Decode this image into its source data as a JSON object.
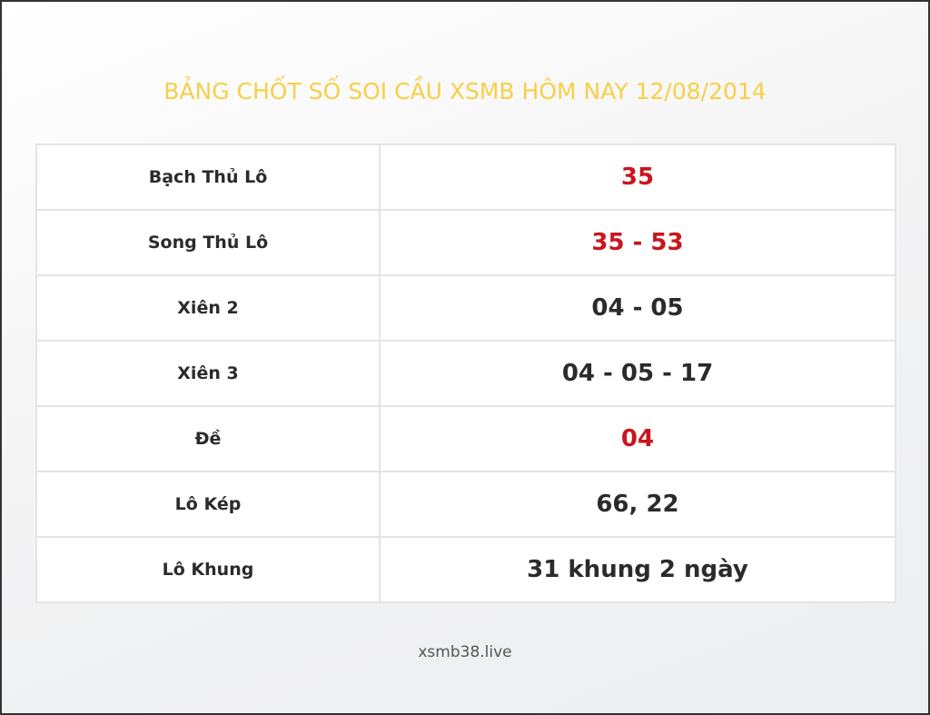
{
  "title": "BẢNG CHỐT SỐ SOI CẦU XSMB HÔM NAY 12/08/2014",
  "rows": [
    {
      "label": "Bạch Thủ Lô",
      "value": "35",
      "highlight": true
    },
    {
      "label": "Song Thủ Lô",
      "value": "35 - 53",
      "highlight": true
    },
    {
      "label": "Xiên 2",
      "value": "04 - 05",
      "highlight": false
    },
    {
      "label": "Xiên 3",
      "value": "04 - 05 - 17",
      "highlight": false
    },
    {
      "label": "Đề",
      "value": "04",
      "highlight": true
    },
    {
      "label": "Lô Kép",
      "value": "66, 22",
      "highlight": false
    },
    {
      "label": "Lô Khung",
      "value": "31 khung 2 ngày",
      "highlight": false
    }
  ],
  "footer": "xsmb38.live",
  "colors": {
    "title": "#f7cf47",
    "highlight": "#c8161d",
    "text": "#2b2b2b"
  }
}
